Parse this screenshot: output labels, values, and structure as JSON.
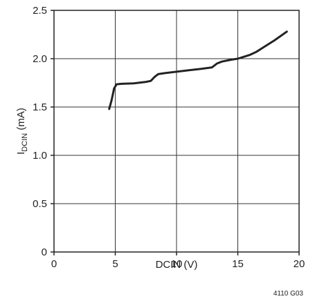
{
  "chart_data": {
    "type": "line",
    "title": "",
    "xlabel": "DCIN (V)",
    "ylabel_main": "I",
    "ylabel_sub": "DCIN",
    "ylabel_suffix": " (mA)",
    "xlim": [
      0,
      20
    ],
    "ylim": [
      0,
      2.5
    ],
    "x_ticks": [
      0,
      5,
      10,
      15,
      20
    ],
    "y_ticks": [
      0,
      0.5,
      1.0,
      1.5,
      2.0,
      2.5
    ],
    "x_tick_labels": [
      "0",
      "5",
      "10",
      "15",
      "20"
    ],
    "y_tick_labels": [
      "0",
      "0.5",
      "1.0",
      "1.5",
      "2.0",
      "2.5"
    ],
    "grid": true,
    "series": [
      {
        "x": [
          4.5,
          4.7,
          4.9,
          5.1,
          5.5,
          6.5,
          7.5,
          7.9,
          8.2,
          8.5,
          9.0,
          10.0,
          11.0,
          12.0,
          12.9,
          13.3,
          13.7,
          14.5,
          15.0,
          15.5,
          16.0,
          16.5,
          17.0,
          18.0,
          19.0
        ],
        "y": [
          1.48,
          1.57,
          1.69,
          1.735,
          1.74,
          1.745,
          1.76,
          1.77,
          1.81,
          1.84,
          1.85,
          1.865,
          1.88,
          1.895,
          1.91,
          1.95,
          1.97,
          1.99,
          2.0,
          2.02,
          2.04,
          2.07,
          2.11,
          2.19,
          2.28
        ]
      }
    ],
    "figure_id": "4110 G03",
    "colors": {
      "line": "#222222",
      "grid": "#333333",
      "axis": "#222222"
    }
  }
}
